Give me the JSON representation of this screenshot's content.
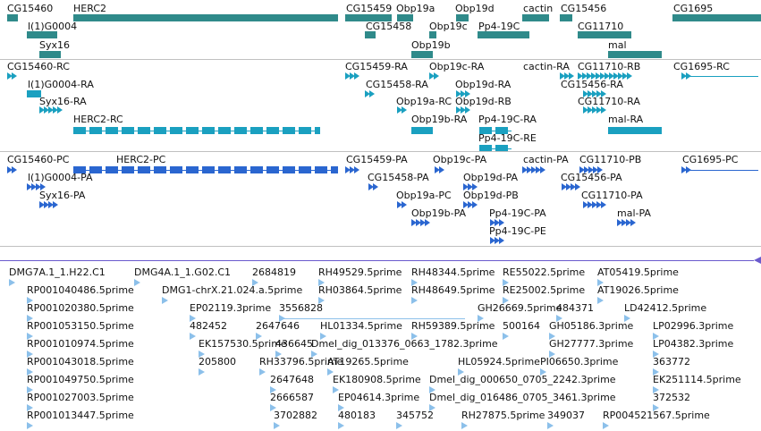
{
  "colors": {
    "gene": "#2f8a8a",
    "transcript": "#1aa0c0",
    "protein": "#2a66d0",
    "est": "#8cc0ea",
    "separator": "#c0c0c0",
    "scroll_line": "#6a5acd"
  },
  "tracks": {
    "genes": {
      "features": [
        {
          "label": "CG15460"
        },
        {
          "label": "HERC2"
        },
        {
          "label": "CG15459"
        },
        {
          "label": "Obp19a"
        },
        {
          "label": "Obp19d"
        },
        {
          "label": "cactin"
        },
        {
          "label": "CG15456"
        },
        {
          "label": "CG1695"
        },
        {
          "label": "l(1)G0004"
        },
        {
          "label": "CG15458"
        },
        {
          "label": "Obp19c"
        },
        {
          "label": "Pp4-19C"
        },
        {
          "label": "CG11710"
        },
        {
          "label": "Syx16"
        },
        {
          "label": "Obp19b"
        },
        {
          "label": "mal"
        }
      ]
    },
    "transcripts": {
      "features": [
        {
          "label": "CG15460-RC"
        },
        {
          "label": "CG15459-RA"
        },
        {
          "label": "Obp19c-RA"
        },
        {
          "label": "cactin-RA"
        },
        {
          "label": "CG11710-RB"
        },
        {
          "label": "CG1695-RC"
        },
        {
          "label": "l(1)G0004-RA"
        },
        {
          "label": "CG15458-RA"
        },
        {
          "label": "Obp19d-RA"
        },
        {
          "label": "CG15456-RA"
        },
        {
          "label": "Syx16-RA"
        },
        {
          "label": "Obp19a-RC"
        },
        {
          "label": "Obp19d-RB"
        },
        {
          "label": "CG11710-RA"
        },
        {
          "label": "HERC2-RC"
        },
        {
          "label": "Obp19b-RA"
        },
        {
          "label": "Pp4-19C-RA"
        },
        {
          "label": "mal-RA"
        },
        {
          "label": "Pp4-19C-RE"
        }
      ]
    },
    "proteins": {
      "features": [
        {
          "label": "CG15460-PC"
        },
        {
          "label": "HERC2-PC"
        },
        {
          "label": "CG15459-PA"
        },
        {
          "label": "Obp19c-PA"
        },
        {
          "label": "cactin-PA"
        },
        {
          "label": "CG11710-PB"
        },
        {
          "label": "CG1695-PC"
        },
        {
          "label": "l(1)G0004-PA"
        },
        {
          "label": "CG15458-PA"
        },
        {
          "label": "Obp19d-PA"
        },
        {
          "label": "CG15456-PA"
        },
        {
          "label": "Syx16-PA"
        },
        {
          "label": "Obp19a-PC"
        },
        {
          "label": "Obp19d-PB"
        },
        {
          "label": "CG11710-PA"
        },
        {
          "label": "Obp19b-PA"
        },
        {
          "label": "Pp4-19C-PA"
        },
        {
          "label": "mal-PA"
        },
        {
          "label": "Pp4-19C-PE"
        }
      ]
    },
    "ests": {
      "features": [
        {
          "label": "DMG7A.1_1.H22.C1"
        },
        {
          "label": "DMG4A.1_1.G02.C1"
        },
        {
          "label": "2684819"
        },
        {
          "label": "RH49529.5prime"
        },
        {
          "label": "RH48344.5prime"
        },
        {
          "label": "RE55022.5prime"
        },
        {
          "label": "AT05419.5prime"
        },
        {
          "label": "RP001040486.5prime"
        },
        {
          "label": "DMG1-chrX.21.024.a.5prime"
        },
        {
          "label": "RH03864.5prime"
        },
        {
          "label": "RH48649.5prime"
        },
        {
          "label": "RE25002.5prime"
        },
        {
          "label": "AT19026.5prime"
        },
        {
          "label": "RP001020380.5prime"
        },
        {
          "label": "EP02119.3prime"
        },
        {
          "label": "3556828"
        },
        {
          "label": "GH26669.5prime"
        },
        {
          "label": "484371"
        },
        {
          "label": "LD42412.5prime"
        },
        {
          "label": "RP001053150.5prime"
        },
        {
          "label": "482452"
        },
        {
          "label": "2647646"
        },
        {
          "label": "HL01334.5prime"
        },
        {
          "label": "RH59389.5prime"
        },
        {
          "label": "500164"
        },
        {
          "label": "GH05186.3prime"
        },
        {
          "label": "LP02996.3prime"
        },
        {
          "label": "RP001010974.5prime"
        },
        {
          "label": "EK157530.5prime"
        },
        {
          "label": "436645"
        },
        {
          "label": "Dmel_dig_013376_0663_1782.3prime"
        },
        {
          "label": "GH27777.3prime"
        },
        {
          "label": "LP04382.3prime"
        },
        {
          "label": "RP001043018.5prime"
        },
        {
          "label": "205800"
        },
        {
          "label": "RH33796.5prime"
        },
        {
          "label": "AT19265.5prime"
        },
        {
          "label": "HL05924.5prime"
        },
        {
          "label": "PI06650.3prime"
        },
        {
          "label": "363772"
        },
        {
          "label": "RP001049750.5prime"
        },
        {
          "label": "2647648"
        },
        {
          "label": "EK180908.5prime"
        },
        {
          "label": "Dmel_dig_000650_0705_2242.3prime"
        },
        {
          "label": "EK251114.5prime"
        },
        {
          "label": "RP001027003.5prime"
        },
        {
          "label": "2666587"
        },
        {
          "label": "EP04614.3prime"
        },
        {
          "label": "Dmel_dig_016486_0705_3461.3prime"
        },
        {
          "label": "372532"
        },
        {
          "label": "RP001013447.5prime"
        },
        {
          "label": "3702882"
        },
        {
          "label": "480183"
        },
        {
          "label": "345752"
        },
        {
          "label": "RH27875.5prime"
        },
        {
          "label": "349037"
        },
        {
          "label": "RP004521567.5prime"
        }
      ]
    }
  }
}
